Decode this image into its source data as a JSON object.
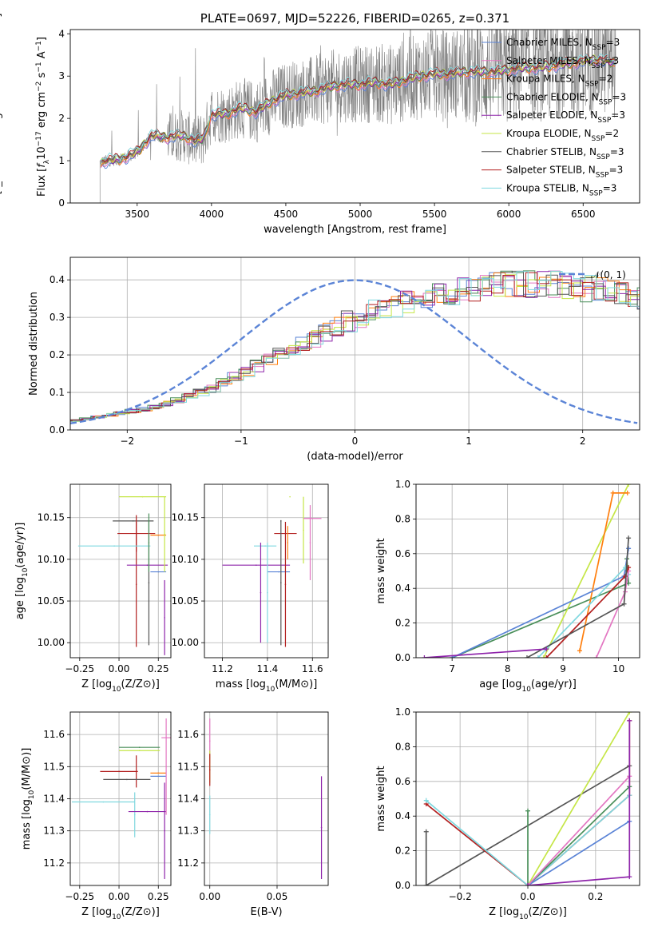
{
  "colors": {
    "chabrier_miles": "#5b84d6",
    "salpeter_miles": "#e377c2",
    "kroupa_miles": "#ff7f0e",
    "chabrier_elodie": "#4a8f5a",
    "salpeter_elodie": "#8e24aa",
    "kroupa_elodie": "#c5e646",
    "chabrier_stelib": "#555555",
    "salpeter_stelib": "#b21f1f",
    "kroupa_stelib": "#7fd8df",
    "spectrum_data": "#808080",
    "normal_curve": "#5b84d6",
    "grid": "#b0b0b0"
  },
  "chart_data": [
    {
      "id": "spectrum",
      "type": "line",
      "title": "PLATE=0697, MJD=52226, FIBERID=0265, z=0.371",
      "xlabel": "wavelength [Angstrom, rest frame]",
      "ylabel": "Flux [f_λ 10^-17 erg cm^-2 s^-1 A^-1]",
      "xlim": [
        3050,
        6880
      ],
      "ylim": [
        0,
        4.1
      ],
      "xticks": [
        "3500",
        "4000",
        "4500",
        "5000",
        "5500",
        "6000",
        "6500"
      ],
      "yticks": [
        "0",
        "1",
        "2",
        "3",
        "4"
      ],
      "grid": false,
      "legend_position": "top-right",
      "legend": [
        {
          "label": "Chabrier MILES, N",
          "sub": "SSP",
          "suffix": "=3",
          "color_key": "chabrier_miles"
        },
        {
          "label": "Salpeter MILES, N",
          "sub": "SSP",
          "suffix": "=3",
          "color_key": "salpeter_miles"
        },
        {
          "label": "Kroupa MILES, N",
          "sub": "SSP",
          "suffix": "=2",
          "color_key": "kroupa_miles"
        },
        {
          "label": "Chabrier ELODIE, N",
          "sub": "SSP",
          "suffix": "=3",
          "color_key": "chabrier_elodie"
        },
        {
          "label": "Salpeter ELODIE, N",
          "sub": "SSP",
          "suffix": "=3",
          "color_key": "salpeter_elodie"
        },
        {
          "label": "Kroupa ELODIE, N",
          "sub": "SSP",
          "suffix": "=2",
          "color_key": "kroupa_elodie"
        },
        {
          "label": "Chabrier STELIB, N",
          "sub": "SSP",
          "suffix": "=3",
          "color_key": "chabrier_stelib"
        },
        {
          "label": "Salpeter STELIB, N",
          "sub": "SSP",
          "suffix": "=3",
          "color_key": "salpeter_stelib"
        },
        {
          "label": "Kroupa STELIB, N",
          "sub": "SSP",
          "suffix": "=3",
          "color_key": "kroupa_stelib"
        }
      ],
      "model_continuum": {
        "x": [
          3250,
          3300,
          3400,
          3500,
          3600,
          3700,
          3800,
          3900,
          3950,
          4000,
          4100,
          4200,
          4300,
          4400,
          4500,
          4600,
          4700,
          4800,
          4900,
          5000,
          5100,
          5200,
          5300,
          5400,
          5500,
          5600,
          5700,
          5800,
          5900,
          6000,
          6100,
          6200,
          6300,
          6400,
          6500,
          6600,
          6720
        ],
        "y": [
          0.95,
          1.0,
          1.05,
          1.2,
          1.6,
          1.55,
          1.6,
          1.45,
          1.55,
          2.1,
          2.1,
          2.25,
          2.15,
          2.4,
          2.55,
          2.6,
          2.65,
          2.75,
          2.8,
          2.8,
          2.85,
          2.8,
          2.9,
          3.0,
          3.05,
          3.05,
          3.1,
          3.1,
          3.1,
          3.15,
          3.2,
          3.2,
          3.25,
          3.3,
          3.35,
          3.4,
          3.3
        ]
      }
    },
    {
      "id": "residuals",
      "type": "line",
      "xlabel": "(data-model)/error",
      "ylabel": "Normed distribution",
      "xlim": [
        -2.5,
        2.5
      ],
      "ylim": [
        0,
        0.46
      ],
      "xticks": [
        "−2",
        "−1",
        "0",
        "1",
        "2"
      ],
      "yticks": [
        "0.0",
        "0.1",
        "0.2",
        "0.3",
        "0.4"
      ],
      "grid": true,
      "legend_position": "top-right",
      "legend": [
        {
          "label": "𝒩(0, 1)",
          "color_key": "normal_curve"
        }
      ],
      "normal": {
        "mean": 0,
        "sigma": 1
      },
      "hist_bin_width": 0.1,
      "series_base": [
        0.025,
        0.03,
        0.035,
        0.04,
        0.045,
        0.05,
        0.055,
        0.06,
        0.07,
        0.08,
        0.09,
        0.1,
        0.11,
        0.125,
        0.14,
        0.155,
        0.17,
        0.185,
        0.2,
        0.215,
        0.23,
        0.245,
        0.26,
        0.275,
        0.29,
        0.3,
        0.315,
        0.325,
        0.335,
        0.345,
        0.355,
        0.36,
        0.365,
        0.37,
        0.375,
        0.38,
        0.38,
        0.385,
        0.385,
        0.39,
        0.39,
        0.39,
        0.385,
        0.385,
        0.38,
        0.375,
        0.37,
        0.365,
        0.36,
        0.355,
        0.345,
        0.335,
        0.325,
        0.315,
        0.305,
        0.295,
        0.285,
        0.27,
        0.255,
        0.24,
        0.225,
        0.21,
        0.195,
        0.18,
        0.165,
        0.15,
        0.135,
        0.12,
        0.11,
        0.1,
        0.09,
        0.08,
        0.07,
        0.065,
        0.06,
        0.055,
        0.05,
        0.045,
        0.04,
        0.035,
        0.03,
        0.025
      ]
    },
    {
      "id": "age_vs_Z",
      "type": "scatter",
      "xlabel": "Z [log10(Z/Z⊙)]",
      "ylabel": "age  [log10(age/yr)]",
      "xlim": [
        -0.31,
        0.33
      ],
      "ylim": [
        9.982,
        10.19
      ],
      "xticks": [
        "−0.25",
        "0.00",
        "0.25"
      ],
      "xtick_values": [
        -0.25,
        0.0,
        0.25
      ],
      "yticks": [
        "10.00",
        "10.05",
        "10.10",
        "10.15"
      ],
      "ytick_values": [
        10.0,
        10.05,
        10.1,
        10.15
      ],
      "grid": true,
      "points": [
        {
          "color_key": "kroupa_elodie",
          "x": 0.15,
          "xerr": 0.15,
          "y": 10.175,
          "yerr": 0.0
        },
        {
          "color_key": "chabrier_stelib",
          "x": 0.09,
          "xerr": 0.13,
          "y": 10.146,
          "yerr": 0.0
        },
        {
          "color_key": "salpeter_stelib",
          "x": 0.11,
          "xerr": 0.12,
          "y": 10.131,
          "yerr": 0.022
        },
        {
          "color_key": "salpeter_stelib",
          "x": 0.11,
          "xerr": 0.0,
          "y": 10.07,
          "yerr": 0.075
        },
        {
          "color_key": "chabrier_stelib",
          "x": 0.19,
          "xerr": 0.0,
          "y": 10.072,
          "yerr": 0.075
        },
        {
          "color_key": "kroupa_miles",
          "x": 0.25,
          "xerr": 0.05,
          "y": 10.129,
          "yerr": 0.0
        },
        {
          "color_key": "kroupa_stelib",
          "x": -0.03,
          "xerr": 0.23,
          "y": 10.116,
          "yerr": 0.0
        },
        {
          "color_key": "salpeter_elodie",
          "x": 0.18,
          "xerr": 0.13,
          "y": 10.093,
          "yerr": 0.0
        },
        {
          "color_key": "chabrier_miles",
          "x": 0.25,
          "xerr": 0.05,
          "y": 10.085,
          "yerr": 0.0
        },
        {
          "color_key": "salpeter_elodie",
          "x": 0.29,
          "xerr": 0.0,
          "y": 10.03,
          "yerr": 0.045
        },
        {
          "color_key": "kroupa_elodie",
          "x": 0.29,
          "xerr": 0.0,
          "y": 10.13,
          "yerr": 0.045
        },
        {
          "color_key": "chabrier_elodie",
          "x": 0.19,
          "xerr": 0.0,
          "y": 10.12,
          "yerr": 0.035
        }
      ]
    },
    {
      "id": "age_vs_mass",
      "type": "scatter",
      "xlabel": "mass [log10(M/M⊙)]",
      "ylabel": "",
      "xlim": [
        11.12,
        11.67
      ],
      "ylim": [
        9.982,
        10.19
      ],
      "xticks": [
        "11.2",
        "11.4",
        "11.6"
      ],
      "xtick_values": [
        11.2,
        11.4,
        11.6
      ],
      "yticks": [
        "10.00",
        "10.05",
        "10.10",
        "10.15"
      ],
      "ytick_values": [
        10.0,
        10.05,
        10.1,
        10.15
      ],
      "grid": true,
      "points": [
        {
          "color_key": "kroupa_elodie",
          "x": 11.5,
          "xerr": 0.0,
          "y": 10.175,
          "yerr": 0.0
        },
        {
          "color_key": "kroupa_elodie",
          "x": 11.56,
          "xerr": 0.0,
          "y": 10.135,
          "yerr": 0.04
        },
        {
          "color_key": "salpeter_miles",
          "x": 11.6,
          "xerr": 0.04,
          "y": 10.149,
          "yerr": 0.0
        },
        {
          "color_key": "salpeter_miles",
          "x": 11.59,
          "xerr": 0.0,
          "y": 10.12,
          "yerr": 0.045
        },
        {
          "color_key": "chabrier_stelib",
          "x": 11.46,
          "xerr": 0.0,
          "y": 10.146,
          "yerr": 0.0
        },
        {
          "color_key": "salpeter_stelib",
          "x": 11.48,
          "xerr": 0.05,
          "y": 10.131,
          "yerr": 0.0
        },
        {
          "color_key": "kroupa_miles",
          "x": 11.49,
          "xerr": 0.0,
          "y": 10.12,
          "yerr": 0.02
        },
        {
          "color_key": "kroupa_stelib",
          "x": 11.39,
          "xerr": 0.05,
          "y": 10.116,
          "yerr": 0.0
        },
        {
          "color_key": "salpeter_elodie",
          "x": 11.35,
          "xerr": 0.15,
          "y": 10.093,
          "yerr": 0.0
        },
        {
          "color_key": "chabrier_miles",
          "x": 11.45,
          "xerr": 0.05,
          "y": 10.085,
          "yerr": 0.0
        },
        {
          "color_key": "salpeter_stelib",
          "x": 11.48,
          "xerr": 0.0,
          "y": 10.07,
          "yerr": 0.075
        },
        {
          "color_key": "chabrier_stelib",
          "x": 11.46,
          "xerr": 0.0,
          "y": 10.072,
          "yerr": 0.075
        },
        {
          "color_key": "kroupa_stelib",
          "x": 11.4,
          "xerr": 0.0,
          "y": 10.06,
          "yerr": 0.06
        },
        {
          "color_key": "salpeter_elodie",
          "x": 11.37,
          "xerr": 0.0,
          "y": 10.06,
          "yerr": 0.06
        }
      ]
    },
    {
      "id": "weight_vs_age",
      "type": "line",
      "xlabel": "age  [log10(age/yr)]",
      "ylabel": "mass weight",
      "xlim": [
        6.35,
        10.38
      ],
      "ylim": [
        0,
        1.0
      ],
      "xticks": [
        "7",
        "8",
        "9",
        "10"
      ],
      "xtick_values": [
        7,
        8,
        9,
        10
      ],
      "yticks": [
        "0.0",
        "0.2",
        "0.4",
        "0.6",
        "0.8",
        "1.0"
      ],
      "ytick_values": [
        0,
        0.2,
        0.4,
        0.6,
        0.8,
        1.0
      ],
      "grid": true,
      "series": [
        {
          "color_key": "chabrier_elodie",
          "x": [
            7.0,
            10.18,
            10.15
          ],
          "y": [
            0.0,
            0.43,
            0.57
          ]
        },
        {
          "color_key": "kroupa_elodie",
          "x": [
            8.65,
            10.18
          ],
          "y": [
            0.0,
            1.0
          ]
        },
        {
          "color_key": "kroupa_miles",
          "x": [
            9.3,
            9.9,
            10.16
          ],
          "y": [
            0.04,
            0.95,
            0.95
          ]
        },
        {
          "color_key": "chabrier_miles",
          "x": [
            7.0,
            10.1,
            10.18
          ],
          "y": [
            0.0,
            0.47,
            0.63
          ]
        },
        {
          "color_key": "kroupa_stelib",
          "x": [
            8.55,
            10.12,
            10.18
          ],
          "y": [
            0.0,
            0.52,
            0.48
          ]
        },
        {
          "color_key": "salpeter_miles",
          "x": [
            9.6,
            10.12,
            10.18
          ],
          "y": [
            0.0,
            0.38,
            0.5
          ]
        },
        {
          "color_key": "salpeter_stelib",
          "x": [
            8.7,
            10.12,
            10.18
          ],
          "y": [
            0.0,
            0.47,
            0.52
          ]
        },
        {
          "color_key": "chabrier_stelib",
          "x": [
            8.35,
            10.1,
            10.18
          ],
          "y": [
            0.0,
            0.31,
            0.69
          ]
        },
        {
          "color_key": "salpeter_elodie",
          "x": [
            6.5,
            8.7
          ],
          "y": [
            0.0,
            0.05
          ]
        }
      ]
    },
    {
      "id": "mass_vs_Z",
      "type": "scatter",
      "xlabel": "Z [log10(Z/Z⊙)]",
      "ylabel": "mass [log10(M/M⊙)]",
      "xlim": [
        -0.31,
        0.33
      ],
      "ylim": [
        11.13,
        11.67
      ],
      "xticks": [
        "−0.25",
        "0.00",
        "0.25"
      ],
      "xtick_values": [
        -0.25,
        0.0,
        0.25
      ],
      "yticks": [
        "11.2",
        "11.3",
        "11.4",
        "11.5",
        "11.6"
      ],
      "ytick_values": [
        11.2,
        11.3,
        11.4,
        11.5,
        11.6
      ],
      "grid": true,
      "points": [
        {
          "color_key": "chabrier_elodie",
          "x": 0.13,
          "xerr": 0.13,
          "y": 11.56,
          "yerr": 0.0
        },
        {
          "color_key": "kroupa_elodie",
          "x": 0.13,
          "xerr": 0.13,
          "y": 11.55,
          "yerr": 0.0
        },
        {
          "color_key": "salpeter_miles",
          "x": 0.3,
          "xerr": 0.03,
          "y": 11.59,
          "yerr": 0.0
        },
        {
          "color_key": "salpeter_stelib",
          "x": 0.0,
          "xerr": 0.12,
          "y": 11.485,
          "yerr": 0.0
        },
        {
          "color_key": "salpeter_stelib",
          "x": 0.11,
          "xerr": 0.0,
          "y": 11.485,
          "yerr": 0.05
        },
        {
          "color_key": "chabrier_stelib",
          "x": 0.05,
          "xerr": 0.15,
          "y": 11.46,
          "yerr": 0.0
        },
        {
          "color_key": "kroupa_miles",
          "x": 0.25,
          "xerr": 0.05,
          "y": 11.48,
          "yerr": 0.0
        },
        {
          "color_key": "chabrier_miles",
          "x": 0.25,
          "xerr": 0.05,
          "y": 11.47,
          "yerr": 0.0
        },
        {
          "color_key": "kroupa_stelib",
          "x": -0.1,
          "xerr": 0.2,
          "y": 11.39,
          "yerr": 0.0
        },
        {
          "color_key": "kroupa_stelib",
          "x": 0.1,
          "xerr": 0.0,
          "y": 11.35,
          "yerr": 0.07
        },
        {
          "color_key": "salpeter_elodie",
          "x": 0.18,
          "xerr": 0.12,
          "y": 11.36,
          "yerr": 0.0
        },
        {
          "color_key": "salpeter_elodie",
          "x": 0.29,
          "xerr": 0.0,
          "y": 11.3,
          "yerr": 0.15
        },
        {
          "color_key": "salpeter_miles",
          "x": 0.3,
          "xerr": 0.0,
          "y": 11.5,
          "yerr": 0.15
        }
      ]
    },
    {
      "id": "mass_vs_ebv",
      "type": "scatter",
      "xlabel": "E(B-V)",
      "ylabel": "",
      "xlim": [
        -0.004,
        0.088
      ],
      "ylim": [
        11.13,
        11.67
      ],
      "xticks": [
        "0.00",
        "0.05"
      ],
      "xtick_values": [
        0.0,
        0.05
      ],
      "yticks": [
        "11.2",
        "11.3",
        "11.4",
        "11.5",
        "11.6"
      ],
      "ytick_values": [
        11.2,
        11.3,
        11.4,
        11.5,
        11.6
      ],
      "grid": true,
      "points": [
        {
          "color_key": "salpeter_miles",
          "x": 0.0,
          "xerr": 0.0,
          "y": 11.58,
          "yerr": 0.07
        },
        {
          "color_key": "kroupa_elodie",
          "x": 0.0,
          "xerr": 0.0,
          "y": 11.5,
          "yerr": 0.05
        },
        {
          "color_key": "salpeter_stelib",
          "x": 0.0,
          "xerr": 0.0,
          "y": 11.49,
          "yerr": 0.05
        },
        {
          "color_key": "kroupa_stelib",
          "x": 0.0,
          "xerr": 0.0,
          "y": 11.35,
          "yerr": 0.06
        },
        {
          "color_key": "salpeter_elodie",
          "x": 0.083,
          "xerr": 0.0,
          "y": 11.31,
          "yerr": 0.16
        }
      ]
    },
    {
      "id": "weight_vs_Z",
      "type": "line",
      "xlabel": "Z [log10(Z/Z⊙)]",
      "ylabel": "mass weight",
      "xlim": [
        -0.33,
        0.33
      ],
      "ylim": [
        0,
        1.0
      ],
      "xticks": [
        "−0.2",
        "0.0",
        "0.2"
      ],
      "xtick_values": [
        -0.2,
        0.0,
        0.2
      ],
      "yticks": [
        "0.0",
        "0.2",
        "0.4",
        "0.6",
        "0.8",
        "1.0"
      ],
      "ytick_values": [
        0,
        0.2,
        0.4,
        0.6,
        0.8,
        1.0
      ],
      "grid": true,
      "series": [
        {
          "color_key": "chabrier_stelib",
          "x": [
            -0.3,
            -0.3,
            0.3
          ],
          "y": [
            0.31,
            0.0,
            0.69
          ]
        },
        {
          "color_key": "salpeter_stelib",
          "x": [
            -0.3,
            0.0,
            0.3,
            0.3
          ],
          "y": [
            0.47,
            0.0,
            0.52,
            0.95
          ]
        },
        {
          "color_key": "kroupa_stelib",
          "x": [
            -0.3,
            0.0,
            0.3
          ],
          "y": [
            0.49,
            0.0,
            0.52
          ]
        },
        {
          "color_key": "chabrier_elodie",
          "x": [
            0.0,
            0.0,
            0.3
          ],
          "y": [
            0.43,
            0.0,
            0.57
          ]
        },
        {
          "color_key": "kroupa_elodie",
          "x": [
            0.0,
            0.3
          ],
          "y": [
            0.0,
            1.0
          ]
        },
        {
          "color_key": "chabrier_miles",
          "x": [
            0.0,
            0.3
          ],
          "y": [
            0.0,
            0.37
          ]
        },
        {
          "color_key": "salpeter_miles",
          "x": [
            0.0,
            0.3
          ],
          "y": [
            0.0,
            0.63
          ]
        },
        {
          "color_key": "salpeter_elodie",
          "x": [
            0.0,
            0.3,
            0.3
          ],
          "y": [
            0.0,
            0.05,
            0.95
          ]
        }
      ]
    }
  ]
}
